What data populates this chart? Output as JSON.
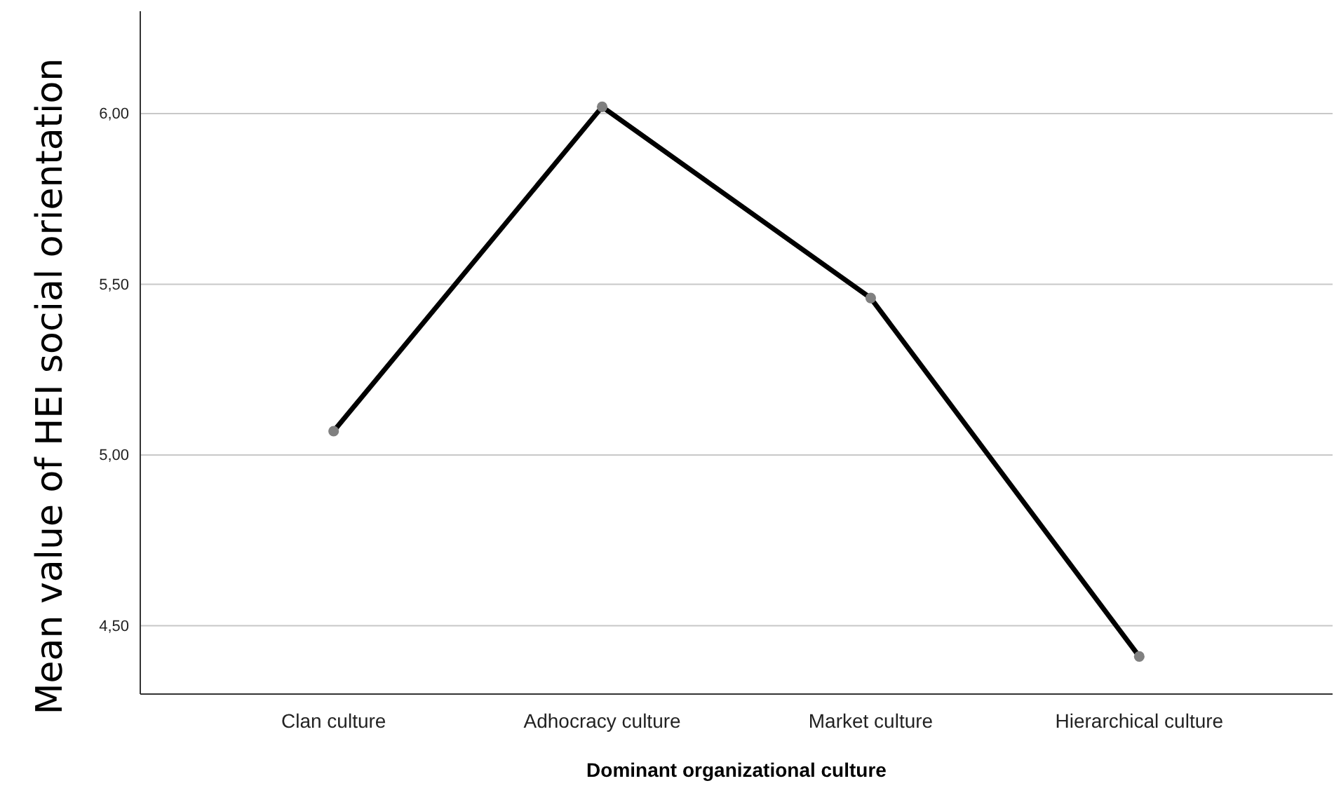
{
  "chart_data": {
    "type": "line",
    "xlabel": "Dominant organizational culture",
    "ylabel": "Mean value of HEI social orientation",
    "categories": [
      "Clan culture",
      "Adhocracy culture",
      "Market culture",
      "Hierarchical culture"
    ],
    "series": [
      {
        "color": "#000000",
        "values": [
          5.07,
          6.02,
          5.46,
          4.41
        ]
      }
    ],
    "ylim": [
      4.3,
      6.3
    ],
    "yticks": [
      {
        "value": 4.5,
        "label": "4,50"
      },
      {
        "value": 5,
        "label": "5,00"
      },
      {
        "value": 5.5,
        "label": "5,50"
      },
      {
        "value": 6,
        "label": "6,00"
      }
    ],
    "grid": "y",
    "marker": "circle",
    "line_style": "solid"
  }
}
